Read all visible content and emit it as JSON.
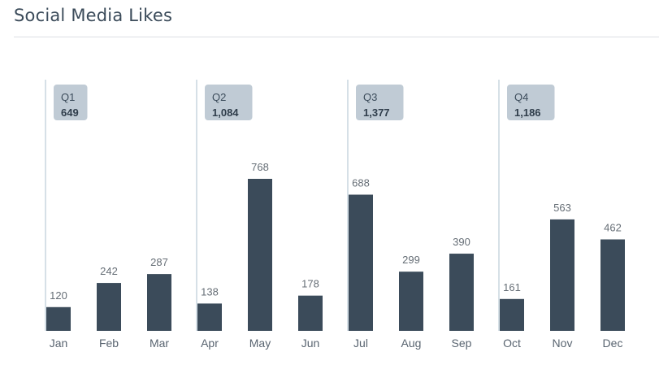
{
  "title": "Social Media Likes",
  "chart_data": {
    "type": "bar",
    "categories": [
      "Jan",
      "Feb",
      "Mar",
      "Apr",
      "May",
      "Jun",
      "Jul",
      "Aug",
      "Sep",
      "Oct",
      "Nov",
      "Dec"
    ],
    "values": [
      120,
      242,
      287,
      138,
      768,
      178,
      688,
      299,
      390,
      161,
      563,
      462
    ],
    "quarters": [
      {
        "name": "Q1",
        "total": "649"
      },
      {
        "name": "Q2",
        "total": "1,084"
      },
      {
        "name": "Q3",
        "total": "1,377"
      },
      {
        "name": "Q4",
        "total": "1,186"
      }
    ],
    "bar_color": "#3b4b5a",
    "badge_color": "#c0cbd5",
    "quarter_line_color": "#c9d6df",
    "ylim": [
      0,
      850
    ],
    "grid": false,
    "legend": "none"
  }
}
